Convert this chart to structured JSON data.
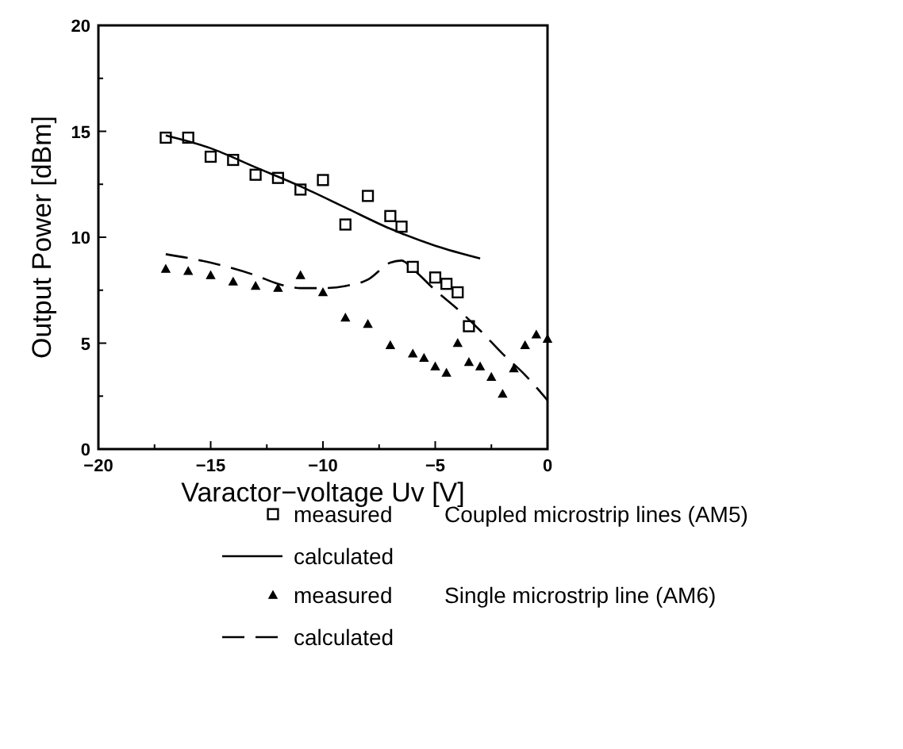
{
  "chart_data": {
    "type": "scatter",
    "xlabel": "Varactor−voltage Uv [V]",
    "ylabel": "Output Power [dBm]",
    "xlim": [
      -20,
      0
    ],
    "xticks": [
      -20,
      {
        "value": -17.5,
        "label": null
      },
      -15,
      {
        "value": -12.5,
        "label": null
      },
      -10,
      {
        "value": -7.5,
        "label": null
      },
      -5,
      {
        "value": -2.5,
        "label": null
      },
      0
    ],
    "ylim": [
      0,
      20
    ],
    "yticks": [
      0,
      {
        "value": 2.5,
        "label": null
      },
      5,
      {
        "value": 7.5,
        "label": null
      },
      10,
      {
        "value": 12.5,
        "label": null
      },
      15,
      {
        "value": 17.5,
        "label": null
      },
      20
    ],
    "grid": false,
    "legend": "bottom",
    "series": [
      {
        "name": "measured",
        "marker": "square",
        "color": "#000000",
        "x": [
          -17,
          -16,
          -15,
          -14,
          -13,
          -12,
          -11,
          -10,
          -9,
          -8,
          -7,
          -6.5,
          -6,
          -5,
          -4.5,
          -4,
          -3.5
        ],
        "values": [
          14.7,
          14.7,
          13.8,
          13.65,
          12.95,
          12.8,
          12.25,
          12.7,
          10.6,
          11.95,
          11.0,
          10.5,
          8.6,
          8.1,
          7.8,
          7.4,
          5.8
        ]
      },
      {
        "name": "calculated",
        "type": "line",
        "line_style": "solid",
        "color": "#000000",
        "x": [
          -17,
          -15,
          -13,
          -11,
          -9,
          -7,
          -5,
          -3
        ],
        "values": [
          14.8,
          14.2,
          13.3,
          12.4,
          11.4,
          10.4,
          9.6,
          9.0
        ]
      },
      {
        "name": "measured",
        "marker": "triangle",
        "color": "#000000",
        "x": [
          -17,
          -16,
          -15,
          -14,
          -13,
          -12,
          -11,
          -10,
          -9,
          -8,
          -7,
          -6,
          -5.5,
          -5,
          -4.5,
          -4,
          -3.5,
          -3,
          -2.5,
          -2,
          -1.5,
          -1,
          -0.5,
          0
        ],
        "values": [
          8.5,
          8.4,
          8.2,
          7.9,
          7.7,
          7.6,
          8.2,
          7.4,
          6.2,
          5.9,
          4.9,
          4.5,
          4.3,
          3.9,
          3.6,
          5.0,
          4.1,
          3.9,
          3.4,
          2.6,
          3.8,
          4.9,
          5.4,
          5.2
        ]
      },
      {
        "name": "calculated",
        "type": "line",
        "line_style": "dashed",
        "color": "#000000",
        "x": [
          -17,
          -15,
          -13,
          -12,
          -11,
          -10,
          -9,
          -8,
          -7,
          -6.5,
          -6,
          -5,
          -4,
          -3,
          -2,
          -1,
          0
        ],
        "values": [
          9.2,
          8.8,
          8.2,
          7.8,
          7.6,
          7.6,
          7.7,
          8.0,
          8.8,
          8.9,
          8.5,
          7.5,
          6.6,
          5.6,
          4.5,
          3.5,
          2.3
        ]
      }
    ],
    "annotations": [
      "Coupled microstrip lines (AM5)",
      "Single microstrip line (AM6)"
    ]
  }
}
